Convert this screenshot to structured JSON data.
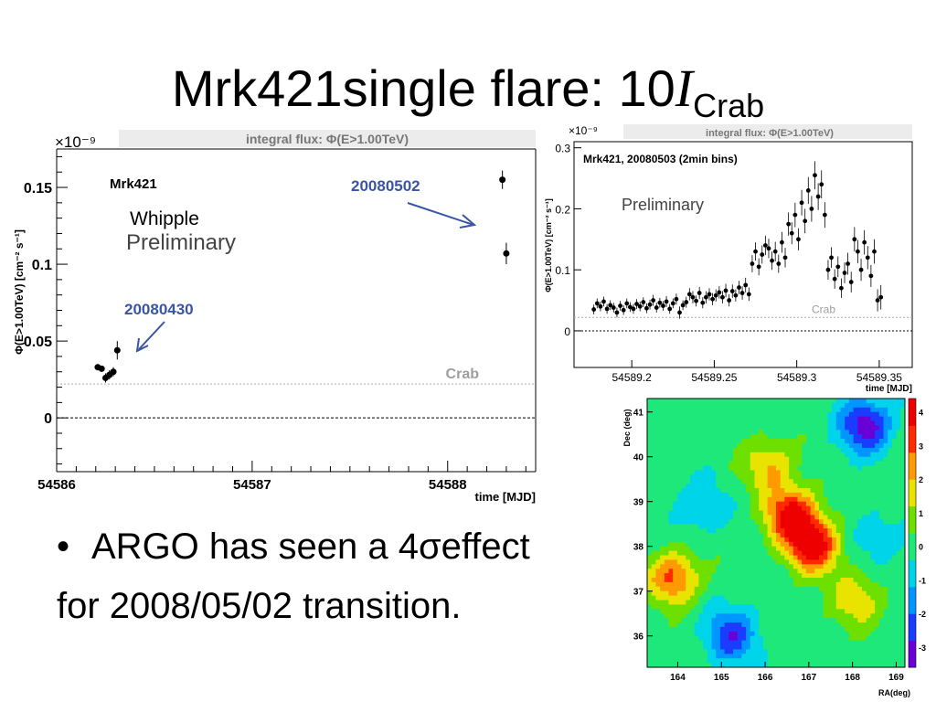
{
  "slide": {
    "title_main": "Mrk421single flare: 10",
    "title_symbol": "I",
    "title_sub": "Crab",
    "bullet": "ARGO has seen a 4σeffect",
    "bullet_cont": "for 2008/05/02 transition."
  },
  "chart_data": [
    {
      "type": "scatter",
      "title": "integral flux: Φ(E>1.00TeV)",
      "xlabel": "time [MJD]",
      "ylabel": "Φ(E>1.00TeV) [cm⁻² s⁻¹]",
      "exponent_label": "×10⁻⁹",
      "xlim": [
        54586,
        54588.45
      ],
      "ylim": [
        -0.035,
        0.175
      ],
      "xticks": [
        54586,
        54587,
        54588
      ],
      "yticks": [
        0,
        0.05,
        0.1,
        0.15
      ],
      "ytick_labels": [
        "0",
        "0.05",
        "0.1",
        "0.15"
      ],
      "points": [
        {
          "x": 54586.21,
          "y": 0.033,
          "err": 0.002
        },
        {
          "x": 54586.23,
          "y": 0.032,
          "err": 0.002
        },
        {
          "x": 54586.25,
          "y": 0.026,
          "err": 0.003
        },
        {
          "x": 54586.27,
          "y": 0.028,
          "err": 0.003
        },
        {
          "x": 54586.29,
          "y": 0.03,
          "err": 0.003
        },
        {
          "x": 54586.31,
          "y": 0.044,
          "err": 0.006
        },
        {
          "x": 54588.28,
          "y": 0.155,
          "err": 0.006
        },
        {
          "x": 54588.3,
          "y": 0.107,
          "err": 0.007
        }
      ],
      "crab_level": 0.022,
      "annotations": {
        "source": "Mrk421",
        "instrument": "Whipple",
        "status": "Preliminary",
        "date1": "20080430",
        "date2": "20080502",
        "crab": "Crab"
      },
      "colors": {
        "annotation": "#3a55a4",
        "crab": "#9e9e9e"
      }
    },
    {
      "type": "scatter",
      "title": "integral flux: Φ(E>1.00TeV)",
      "xlabel": "time [MJD]",
      "ylabel": "Φ(E>1.00TeV) [cm⁻² s⁻¹]",
      "exponent_label": "×10⁻⁹",
      "xlim": [
        54589.165,
        54589.37
      ],
      "ylim": [
        -0.06,
        0.31
      ],
      "xticks": [
        54589.2,
        54589.25,
        54589.3,
        54589.35
      ],
      "yticks": [
        0,
        0.1,
        0.2,
        0.3
      ],
      "ytick_labels": [
        "0",
        "0.1",
        "0.2",
        "0.3"
      ],
      "subtitle": "Mrk421, 20080503 (2min bins)",
      "status": "Preliminary",
      "crab_label": "Crab",
      "crab_level": 0.022,
      "points": [
        {
          "x": 54589.177,
          "y": 0.035,
          "err": 0.008
        },
        {
          "x": 54589.179,
          "y": 0.045,
          "err": 0.008
        },
        {
          "x": 54589.181,
          "y": 0.04,
          "err": 0.008
        },
        {
          "x": 54589.183,
          "y": 0.048,
          "err": 0.008
        },
        {
          "x": 54589.185,
          "y": 0.036,
          "err": 0.008
        },
        {
          "x": 54589.187,
          "y": 0.042,
          "err": 0.008
        },
        {
          "x": 54589.189,
          "y": 0.038,
          "err": 0.008
        },
        {
          "x": 54589.191,
          "y": 0.03,
          "err": 0.008
        },
        {
          "x": 54589.193,
          "y": 0.041,
          "err": 0.008
        },
        {
          "x": 54589.195,
          "y": 0.034,
          "err": 0.008
        },
        {
          "x": 54589.197,
          "y": 0.045,
          "err": 0.008
        },
        {
          "x": 54589.199,
          "y": 0.039,
          "err": 0.008
        },
        {
          "x": 54589.201,
          "y": 0.036,
          "err": 0.008
        },
        {
          "x": 54589.203,
          "y": 0.044,
          "err": 0.008
        },
        {
          "x": 54589.205,
          "y": 0.04,
          "err": 0.008
        },
        {
          "x": 54589.207,
          "y": 0.047,
          "err": 0.008
        },
        {
          "x": 54589.209,
          "y": 0.037,
          "err": 0.008
        },
        {
          "x": 54589.211,
          "y": 0.043,
          "err": 0.008
        },
        {
          "x": 54589.213,
          "y": 0.05,
          "err": 0.009
        },
        {
          "x": 54589.215,
          "y": 0.038,
          "err": 0.008
        },
        {
          "x": 54589.217,
          "y": 0.046,
          "err": 0.008
        },
        {
          "x": 54589.219,
          "y": 0.041,
          "err": 0.008
        },
        {
          "x": 54589.221,
          "y": 0.048,
          "err": 0.009
        },
        {
          "x": 54589.223,
          "y": 0.036,
          "err": 0.008
        },
        {
          "x": 54589.225,
          "y": 0.045,
          "err": 0.008
        },
        {
          "x": 54589.227,
          "y": 0.052,
          "err": 0.009
        },
        {
          "x": 54589.229,
          "y": 0.03,
          "err": 0.01
        },
        {
          "x": 54589.231,
          "y": 0.042,
          "err": 0.008
        },
        {
          "x": 54589.233,
          "y": 0.047,
          "err": 0.009
        },
        {
          "x": 54589.235,
          "y": 0.06,
          "err": 0.01
        },
        {
          "x": 54589.237,
          "y": 0.055,
          "err": 0.01
        },
        {
          "x": 54589.239,
          "y": 0.049,
          "err": 0.009
        },
        {
          "x": 54589.241,
          "y": 0.062,
          "err": 0.01
        },
        {
          "x": 54589.243,
          "y": 0.046,
          "err": 0.009
        },
        {
          "x": 54589.245,
          "y": 0.055,
          "err": 0.01
        },
        {
          "x": 54589.247,
          "y": 0.06,
          "err": 0.01
        },
        {
          "x": 54589.249,
          "y": 0.052,
          "err": 0.01
        },
        {
          "x": 54589.251,
          "y": 0.058,
          "err": 0.01
        },
        {
          "x": 54589.253,
          "y": 0.063,
          "err": 0.01
        },
        {
          "x": 54589.255,
          "y": 0.055,
          "err": 0.01
        },
        {
          "x": 54589.257,
          "y": 0.066,
          "err": 0.011
        },
        {
          "x": 54589.259,
          "y": 0.05,
          "err": 0.01
        },
        {
          "x": 54589.261,
          "y": 0.065,
          "err": 0.011
        },
        {
          "x": 54589.263,
          "y": 0.058,
          "err": 0.01
        },
        {
          "x": 54589.265,
          "y": 0.071,
          "err": 0.011
        },
        {
          "x": 54589.267,
          "y": 0.062,
          "err": 0.011
        },
        {
          "x": 54589.269,
          "y": 0.075,
          "err": 0.012
        },
        {
          "x": 54589.271,
          "y": 0.06,
          "err": 0.011
        },
        {
          "x": 54589.273,
          "y": 0.11,
          "err": 0.014
        },
        {
          "x": 54589.275,
          "y": 0.13,
          "err": 0.015
        },
        {
          "x": 54589.277,
          "y": 0.105,
          "err": 0.014
        },
        {
          "x": 54589.279,
          "y": 0.125,
          "err": 0.015
        },
        {
          "x": 54589.281,
          "y": 0.14,
          "err": 0.016
        },
        {
          "x": 54589.283,
          "y": 0.135,
          "err": 0.016
        },
        {
          "x": 54589.285,
          "y": 0.115,
          "err": 0.015
        },
        {
          "x": 54589.287,
          "y": 0.13,
          "err": 0.016
        },
        {
          "x": 54589.289,
          "y": 0.11,
          "err": 0.015
        },
        {
          "x": 54589.291,
          "y": 0.145,
          "err": 0.017
        },
        {
          "x": 54589.293,
          "y": 0.12,
          "err": 0.016
        },
        {
          "x": 54589.295,
          "y": 0.175,
          "err": 0.019
        },
        {
          "x": 54589.297,
          "y": 0.16,
          "err": 0.018
        },
        {
          "x": 54589.299,
          "y": 0.19,
          "err": 0.02
        },
        {
          "x": 54589.301,
          "y": 0.15,
          "err": 0.018
        },
        {
          "x": 54589.303,
          "y": 0.21,
          "err": 0.021
        },
        {
          "x": 54589.305,
          "y": 0.18,
          "err": 0.02
        },
        {
          "x": 54589.307,
          "y": 0.23,
          "err": 0.022
        },
        {
          "x": 54589.309,
          "y": 0.2,
          "err": 0.021
        },
        {
          "x": 54589.311,
          "y": 0.255,
          "err": 0.023
        },
        {
          "x": 54589.313,
          "y": 0.22,
          "err": 0.022
        },
        {
          "x": 54589.315,
          "y": 0.24,
          "err": 0.023
        },
        {
          "x": 54589.317,
          "y": 0.19,
          "err": 0.021
        },
        {
          "x": 54589.319,
          "y": 0.1,
          "err": 0.016
        },
        {
          "x": 54589.321,
          "y": 0.12,
          "err": 0.017
        },
        {
          "x": 54589.323,
          "y": 0.085,
          "err": 0.016
        },
        {
          "x": 54589.325,
          "y": 0.105,
          "err": 0.017
        },
        {
          "x": 54589.327,
          "y": 0.07,
          "err": 0.016
        },
        {
          "x": 54589.329,
          "y": 0.095,
          "err": 0.017
        },
        {
          "x": 54589.331,
          "y": 0.11,
          "err": 0.018
        },
        {
          "x": 54589.333,
          "y": 0.08,
          "err": 0.017
        },
        {
          "x": 54589.335,
          "y": 0.15,
          "err": 0.02
        },
        {
          "x": 54589.337,
          "y": 0.13,
          "err": 0.019
        },
        {
          "x": 54589.339,
          "y": 0.1,
          "err": 0.018
        },
        {
          "x": 54589.341,
          "y": 0.145,
          "err": 0.02
        },
        {
          "x": 54589.343,
          "y": 0.12,
          "err": 0.019
        },
        {
          "x": 54589.345,
          "y": 0.09,
          "err": 0.018
        },
        {
          "x": 54589.347,
          "y": 0.13,
          "err": 0.02
        },
        {
          "x": 54589.349,
          "y": 0.05,
          "err": 0.018
        },
        {
          "x": 54589.351,
          "y": 0.055,
          "err": 0.02
        }
      ]
    },
    {
      "type": "heatmap",
      "xlabel": "RA(deg)",
      "ylabel": "Dec (deg)",
      "xlim": [
        163.3,
        169.2
      ],
      "ylim": [
        35.3,
        41.3
      ],
      "xticks": [
        164,
        165,
        166,
        167,
        168,
        169
      ],
      "yticks": [
        36,
        37,
        38,
        39,
        40,
        41
      ],
      "zlim": [
        -3.6,
        4.4
      ],
      "zticks": [
        -3,
        -2,
        -1,
        0,
        1,
        2,
        3,
        4
      ],
      "colorscale": [
        "#6a00d8",
        "#1a3cff",
        "#0096ff",
        "#00d4e8",
        "#1ee87a",
        "#6ee000",
        "#e8e400",
        "#ff9a00",
        "#ff2a00",
        "#ee0000"
      ],
      "hotspots": [
        {
          "ra": 166.6,
          "dec": 38.7,
          "sigma": 4.0
        },
        {
          "ra": 167.1,
          "dec": 38.0,
          "sigma": 4.2
        },
        {
          "ra": 163.9,
          "dec": 37.3,
          "sigma": 3.0
        },
        {
          "ra": 166.1,
          "dec": 39.8,
          "sigma": 2.0
        },
        {
          "ra": 168.1,
          "dec": 36.8,
          "sigma": 1.8
        }
      ],
      "coldspots": [
        {
          "ra": 168.3,
          "dec": 40.7,
          "sigma": -3.3
        },
        {
          "ra": 165.2,
          "dec": 36.0,
          "sigma": -2.6
        },
        {
          "ra": 164.5,
          "dec": 38.9,
          "sigma": -1.2
        },
        {
          "ra": 168.6,
          "dec": 38.2,
          "sigma": -1.0
        }
      ]
    }
  ]
}
